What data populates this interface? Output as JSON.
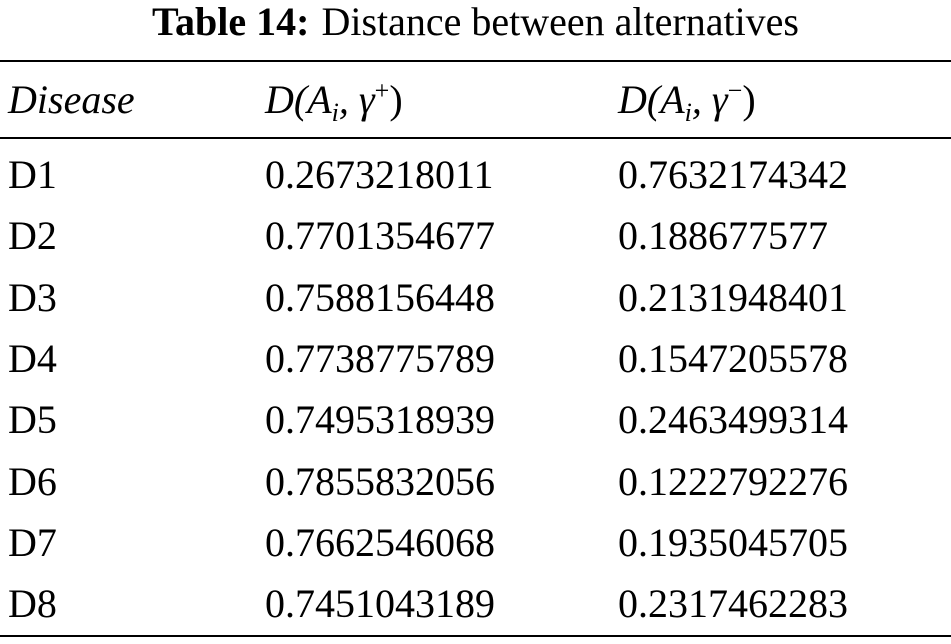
{
  "title": {
    "label": "Table 14:",
    "text": "Distance between alternatives"
  },
  "table": {
    "headers": [
      "Disease",
      {
        "base": "D(A",
        "sub": "i",
        "mid": ", γ",
        "sup": "+",
        "end": ")"
      },
      {
        "base": "D(A",
        "sub": "i",
        "mid": ", γ",
        "sup": "−",
        "end": ")"
      }
    ],
    "rows": [
      [
        "D1",
        "0.2673218011",
        "0.7632174342"
      ],
      [
        "D2",
        "0.7701354677",
        "0.188677577"
      ],
      [
        "D3",
        "0.7588156448",
        "0.2131948401"
      ],
      [
        "D4",
        "0.7738775789",
        "0.1547205578"
      ],
      [
        "D5",
        "0.7495318939",
        "0.2463499314"
      ],
      [
        "D6",
        "0.7855832056",
        "0.1222792276"
      ],
      [
        "D7",
        "0.7662546068",
        "0.1935045705"
      ],
      [
        "D8",
        "0.7451043189",
        "0.2317462283"
      ]
    ]
  }
}
